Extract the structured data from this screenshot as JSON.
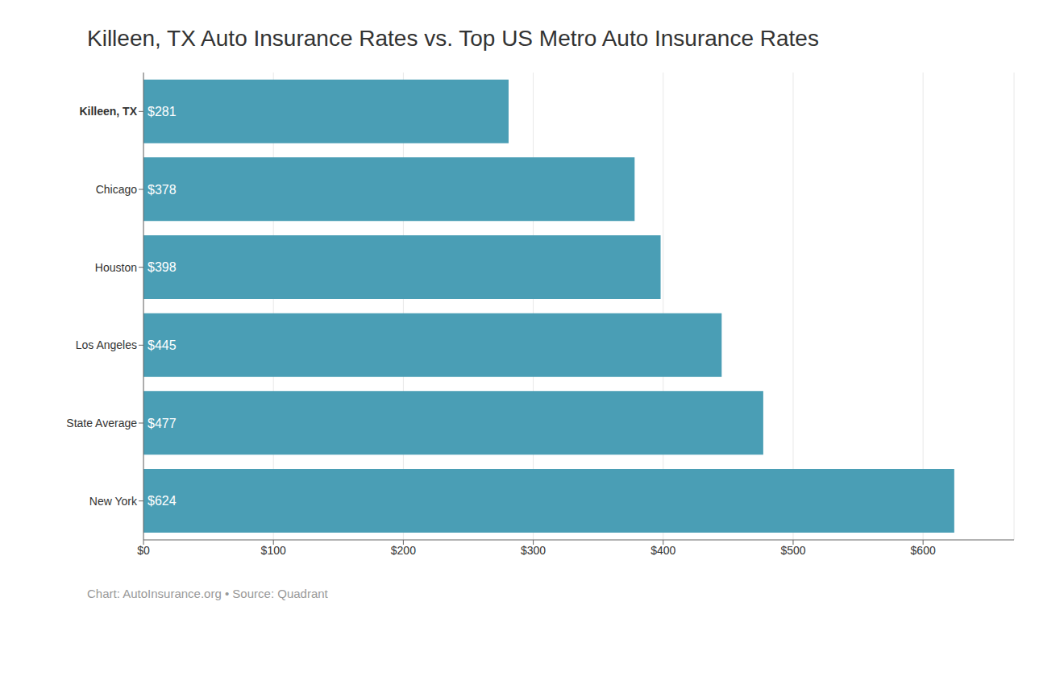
{
  "chart_data": {
    "type": "bar",
    "orientation": "horizontal",
    "title": "Killeen, TX Auto Insurance Rates vs. Top US Metro Auto Insurance Rates",
    "categories": [
      "Killeen, TX",
      "Chicago",
      "Houston",
      "Los Angeles",
      "State Average",
      "New York"
    ],
    "values": [
      281,
      378,
      398,
      445,
      477,
      624
    ],
    "value_labels": [
      "$281",
      "$378",
      "$398",
      "$445",
      "$477",
      "$624"
    ],
    "data_labels": true,
    "color": "#4a9eb5",
    "xlim": [
      0,
      670
    ],
    "xticks": [
      {
        "value": 0,
        "label": "$0"
      },
      {
        "value": 100,
        "label": "$100"
      },
      {
        "value": 200,
        "label": "$200"
      },
      {
        "value": 300,
        "label": "$300"
      },
      {
        "value": 400,
        "label": "$400"
      },
      {
        "value": 500,
        "label": "$500"
      },
      {
        "value": 600,
        "label": "$600"
      }
    ],
    "grid": true,
    "annotations": [
      "Chart: AutoInsurance.org • Source: Quadrant"
    ]
  }
}
